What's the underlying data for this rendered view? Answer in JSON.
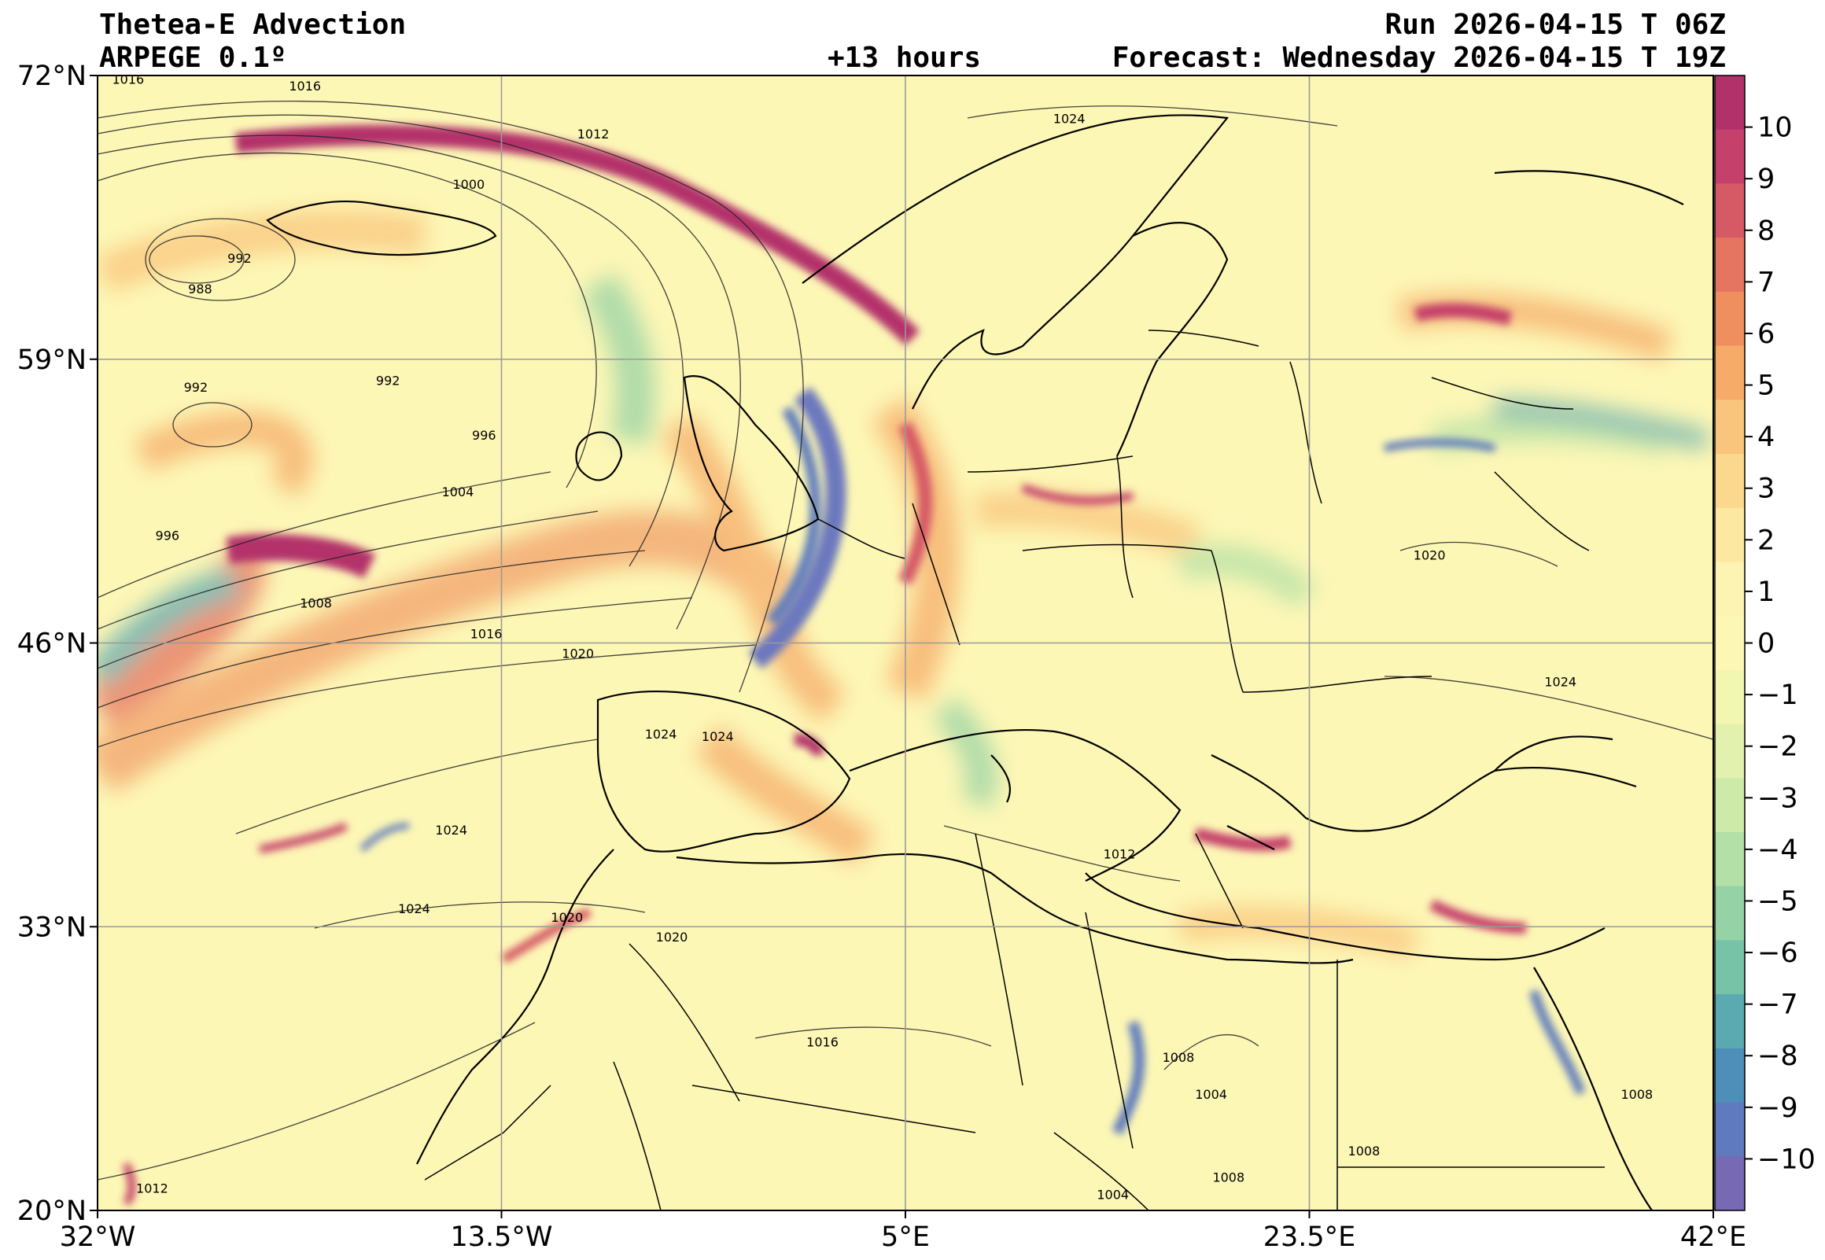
{
  "header": {
    "title": "Thetea-E Advection",
    "model": "ARPEGE 0.1º",
    "run": "Run 2026-04-15 T 06Z",
    "lead": "+13 hours",
    "forecast": "Forecast: Wednesday 2026-04-15 T 19Z"
  },
  "map": {
    "lon_range": [
      -32,
      42
    ],
    "lat_range": [
      20,
      72
    ],
    "lon_ticks": [
      {
        "value": -32,
        "label": "32°W"
      },
      {
        "value": -13.5,
        "label": "13.5°W"
      },
      {
        "value": 5,
        "label": "5°E"
      },
      {
        "value": 23.5,
        "label": "23.5°E"
      },
      {
        "value": 42,
        "label": "42°E"
      }
    ],
    "lat_ticks": [
      {
        "value": 72,
        "label": "72°N"
      },
      {
        "value": 59,
        "label": "59°N"
      },
      {
        "value": 46,
        "label": "46°N"
      },
      {
        "value": 33,
        "label": "33°N"
      },
      {
        "value": 20,
        "label": "20°N"
      }
    ],
    "grid": true,
    "background_color": "#fdf7b6"
  },
  "isobar_labels": [
    {
      "text": "1016",
      "lon": -30.6,
      "lat": 71.8
    },
    {
      "text": "1016",
      "lon": -22.5,
      "lat": 71.5
    },
    {
      "text": "1012",
      "lon": -9.3,
      "lat": 69.3
    },
    {
      "text": "1024",
      "lon": 12.5,
      "lat": 70.0
    },
    {
      "text": "1000",
      "lon": -15.0,
      "lat": 67.0
    },
    {
      "text": "992",
      "lon": -25.5,
      "lat": 63.6
    },
    {
      "text": "988",
      "lon": -27.3,
      "lat": 62.2
    },
    {
      "text": "992",
      "lon": -27.5,
      "lat": 57.7
    },
    {
      "text": "992",
      "lon": -18.7,
      "lat": 58.0
    },
    {
      "text": "996",
      "lon": -14.3,
      "lat": 55.5
    },
    {
      "text": "1004",
      "lon": -15.5,
      "lat": 52.9
    },
    {
      "text": "996",
      "lon": -28.8,
      "lat": 50.9
    },
    {
      "text": "1008",
      "lon": -22.0,
      "lat": 47.8
    },
    {
      "text": "1016",
      "lon": -14.2,
      "lat": 46.4
    },
    {
      "text": "1020",
      "lon": -10.0,
      "lat": 45.5
    },
    {
      "text": "1024",
      "lon": -6.2,
      "lat": 41.8
    },
    {
      "text": "1024",
      "lon": -3.6,
      "lat": 41.7
    },
    {
      "text": "1024",
      "lon": -15.8,
      "lat": 37.4
    },
    {
      "text": "1024",
      "lon": -17.5,
      "lat": 33.8
    },
    {
      "text": "1020",
      "lon": -10.5,
      "lat": 33.4
    },
    {
      "text": "1020",
      "lon": -5.7,
      "lat": 32.5
    },
    {
      "text": "1012",
      "lon": 14.8,
      "lat": 36.3
    },
    {
      "text": "1020",
      "lon": 29.0,
      "lat": 50.0
    },
    {
      "text": "1024",
      "lon": 35.0,
      "lat": 44.2
    },
    {
      "text": "1016",
      "lon": 1.2,
      "lat": 27.7
    },
    {
      "text": "1008",
      "lon": 17.5,
      "lat": 27.0
    },
    {
      "text": "1004",
      "lon": 19.0,
      "lat": 25.3
    },
    {
      "text": "1012",
      "lon": -29.5,
      "lat": 21.0
    },
    {
      "text": "1004",
      "lon": 14.5,
      "lat": 20.7
    },
    {
      "text": "1008",
      "lon": 19.8,
      "lat": 21.5
    },
    {
      "text": "1008",
      "lon": 26.0,
      "lat": 22.7
    },
    {
      "text": "1008",
      "lon": 38.5,
      "lat": 25.3
    }
  ],
  "colorbar": {
    "min": -11,
    "max": 11,
    "tick_values": [
      10,
      9,
      8,
      7,
      6,
      5,
      4,
      3,
      2,
      1,
      0,
      -1,
      -2,
      -3,
      -4,
      -5,
      -6,
      -7,
      -8,
      -9,
      -10
    ],
    "tick_labels": [
      "10",
      "9",
      "8",
      "7",
      "6",
      "5",
      "4",
      "3",
      "2",
      "1",
      "0",
      "−1",
      "−2",
      "−3",
      "−4",
      "−5",
      "−6",
      "−7",
      "−8",
      "−9",
      "−10"
    ],
    "colors": [
      "#b3316b",
      "#c5406a",
      "#d65a66",
      "#e57560",
      "#ef8f5f",
      "#f6ab69",
      "#f9c47c",
      "#fbd88e",
      "#fde8a2",
      "#fdf3b2",
      "#fdf7b6",
      "#f1f7b0",
      "#e2f1ad",
      "#cdeaa9",
      "#b3e0a6",
      "#95d2a6",
      "#77c3a8",
      "#5ba9b1",
      "#4e8fba",
      "#5f7bbd",
      "#7869b4"
    ]
  }
}
